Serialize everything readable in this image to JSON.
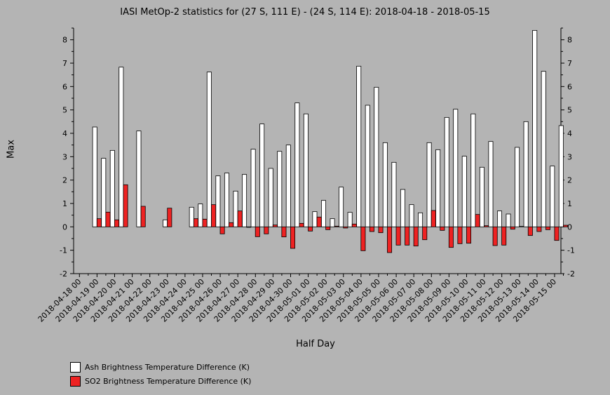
{
  "chart_data": {
    "type": "bar",
    "title": "IASI MetOp-2 statistics for (27 S, 111 E) - (24 S, 114 E): 2018-04-18 - 2018-05-15",
    "xlabel": "Half Day",
    "ylabel": "Max",
    "ylim": [
      -2,
      8.5
    ],
    "yticks": [
      "-2",
      "-1",
      "0",
      "1",
      "2",
      "3",
      "4",
      "5",
      "6",
      "7",
      "8"
    ],
    "categories": [
      "2018-04-18 00",
      "2018-04-18 12",
      "2018-04-19 00",
      "2018-04-19 12",
      "2018-04-20 00",
      "2018-04-20 12",
      "2018-04-21 00",
      "2018-04-21 12",
      "2018-04-22 00",
      "2018-04-22 12",
      "2018-04-23 00",
      "2018-04-23 12",
      "2018-04-24 00",
      "2018-04-24 12",
      "2018-04-25 00",
      "2018-04-25 12",
      "2018-04-26 00",
      "2018-04-26 12",
      "2018-04-27 00",
      "2018-04-27 12",
      "2018-04-28 00",
      "2018-04-28 12",
      "2018-04-29 00",
      "2018-04-29 12",
      "2018-04-30 00",
      "2018-04-30 12",
      "2018-05-01 00",
      "2018-05-01 12",
      "2018-05-02 00",
      "2018-05-02 12",
      "2018-05-03 00",
      "2018-05-03 12",
      "2018-05-04 00",
      "2018-05-04 12",
      "2018-05-05 00",
      "2018-05-05 12",
      "2018-05-06 00",
      "2018-05-06 12",
      "2018-05-07 00",
      "2018-05-07 12",
      "2018-05-08 00",
      "2018-05-08 12",
      "2018-05-09 00",
      "2018-05-09 12",
      "2018-05-10 00",
      "2018-05-10 12",
      "2018-05-11 00",
      "2018-05-11 12",
      "2018-05-12 00",
      "2018-05-12 12",
      "2018-05-13 00",
      "2018-05-13 12",
      "2018-05-14 00",
      "2018-05-14 12",
      "2018-05-15 00",
      "2018-05-15 12"
    ],
    "tick_labels": [
      "2018-04-18 00",
      "2018-04-19 00",
      "2018-04-20 00",
      "2018-04-21 00",
      "2018-04-22 00",
      "2018-04-23 00",
      "2018-04-24 00",
      "2018-04-25 00",
      "2018-04-26 00",
      "2018-04-27 00",
      "2018-04-28 00",
      "2018-04-29 00",
      "2018-04-30 00",
      "2018-05-01 00",
      "2018-05-02 00",
      "2018-05-03 00",
      "2018-05-04 00",
      "2018-05-05 00",
      "2018-05-06 00",
      "2018-05-07 00",
      "2018-05-08 00",
      "2018-05-09 00",
      "2018-05-10 00",
      "2018-05-11 00",
      "2018-05-12 00",
      "2018-05-13 00",
      "2018-05-14 00",
      "2018-05-15 00"
    ],
    "series": [
      {
        "name": "Ash Brightness Temperature Difference (K)",
        "color": "#ffffff",
        "values": [
          null,
          null,
          4.27,
          2.93,
          3.27,
          6.83,
          null,
          4.1,
          null,
          null,
          0.3,
          null,
          null,
          0.84,
          0.98,
          6.62,
          2.18,
          2.3,
          1.53,
          2.24,
          3.32,
          4.4,
          2.5,
          3.23,
          3.5,
          5.3,
          4.83,
          0.65,
          1.13,
          0.35,
          1.7,
          0.62,
          6.87,
          5.2,
          5.97,
          3.6,
          2.76,
          1.6,
          0.95,
          0.6,
          3.6,
          3.3,
          4.68,
          5.03,
          3.02,
          4.83,
          2.55,
          3.65,
          0.68,
          0.55,
          3.4,
          4.5,
          8.4,
          6.65,
          2.6,
          4.33
        ]
      },
      {
        "name": "SO2 Brightness Temperature Difference (K)",
        "color": "#ee2222",
        "values": [
          null,
          null,
          0.35,
          0.63,
          0.3,
          1.8,
          null,
          0.88,
          null,
          null,
          0.8,
          null,
          null,
          0.35,
          0.33,
          0.95,
          -0.3,
          0.18,
          0.68,
          -0.02,
          -0.42,
          -0.3,
          0.08,
          -0.43,
          -0.92,
          0.15,
          -0.18,
          0.42,
          -0.12,
          0.03,
          -0.05,
          0.12,
          -1.02,
          -0.2,
          -0.25,
          -1.1,
          -0.78,
          -0.78,
          -0.82,
          -0.55,
          0.7,
          -0.15,
          -0.88,
          -0.72,
          -0.7,
          0.53,
          0.05,
          -0.8,
          -0.78,
          -0.1,
          0.02,
          -0.37,
          -0.2,
          -0.12,
          -0.58,
          0.07
        ]
      }
    ],
    "grid": false,
    "legend_position": "bottom-left"
  }
}
